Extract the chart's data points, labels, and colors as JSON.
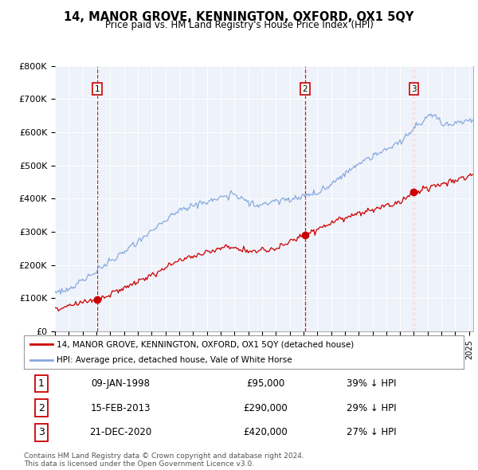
{
  "title": "14, MANOR GROVE, KENNINGTON, OXFORD, OX1 5QY",
  "subtitle": "Price paid vs. HM Land Registry's House Price Index (HPI)",
  "ylabel_ticks": [
    "£0",
    "£100K",
    "£200K",
    "£300K",
    "£400K",
    "£500K",
    "£600K",
    "£700K",
    "£800K"
  ],
  "ylim": [
    0,
    800000
  ],
  "xlim_start": 1995.0,
  "xlim_end": 2025.3,
  "sale_dates": [
    1998.04,
    2013.12,
    2021.0
  ],
  "sale_prices": [
    95000,
    290000,
    420000
  ],
  "sale_labels": [
    "1",
    "2",
    "3"
  ],
  "sale_date_strs": [
    "09-JAN-1998",
    "15-FEB-2013",
    "21-DEC-2020"
  ],
  "sale_price_strs": [
    "£95,000",
    "£290,000",
    "£420,000"
  ],
  "sale_hpi_strs": [
    "39% ↓ HPI",
    "29% ↓ HPI",
    "27% ↓ HPI"
  ],
  "house_color": "#cc0000",
  "hpi_color": "#88aadd",
  "vline_color": "#cc0000",
  "legend_house_label": "14, MANOR GROVE, KENNINGTON, OXFORD, OX1 5QY (detached house)",
  "legend_hpi_label": "HPI: Average price, detached house, Vale of White Horse",
  "footnote": "Contains HM Land Registry data © Crown copyright and database right 2024.\nThis data is licensed under the Open Government Licence v3.0.",
  "background_color": "#ffffff",
  "plot_bg_color": "#eef2fa"
}
